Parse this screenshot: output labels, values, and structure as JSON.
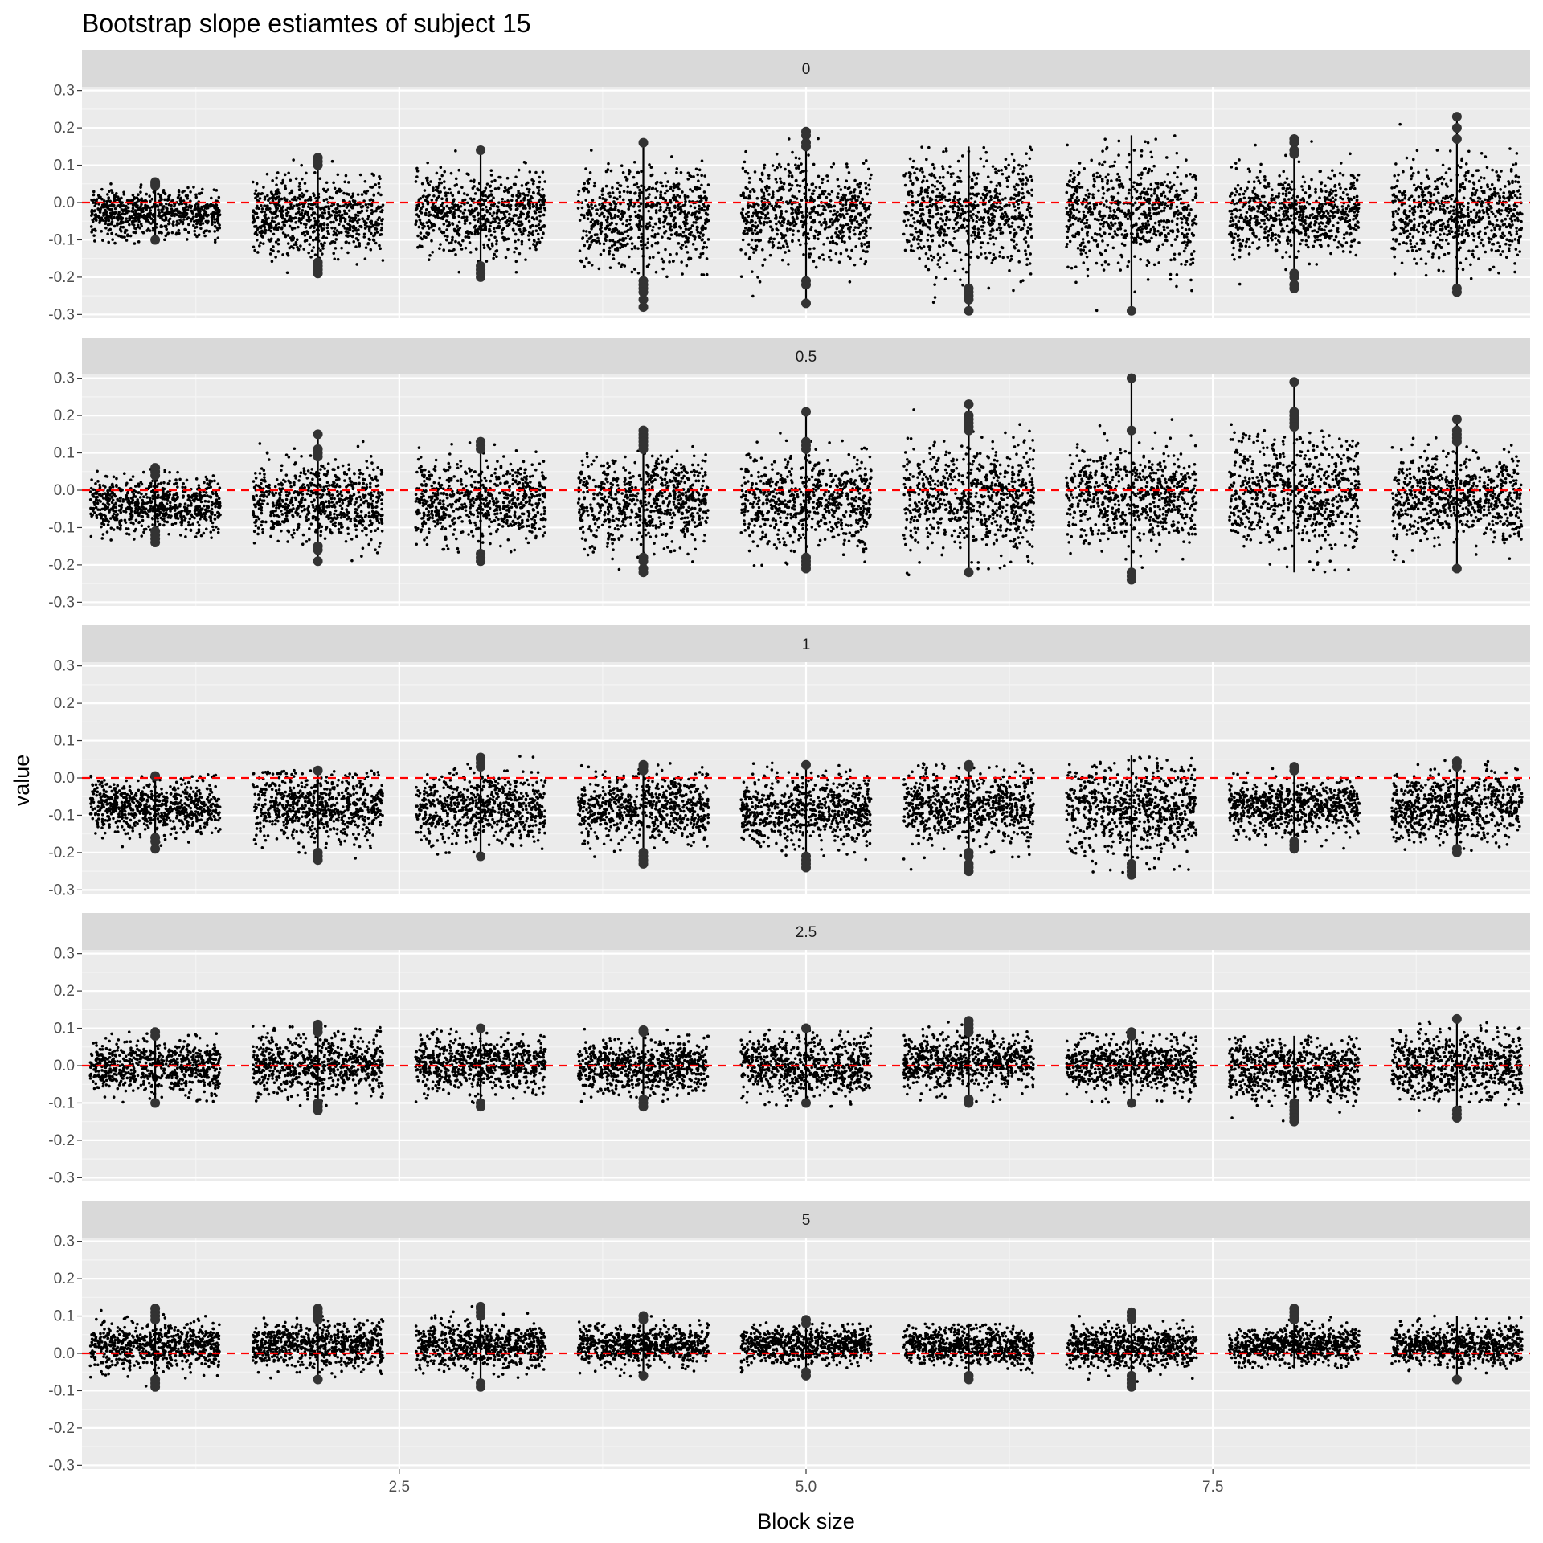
{
  "chart_data": {
    "type": "scatter",
    "title": "Bootstrap slope estiamtes of subject 15",
    "xlabel": "Block size",
    "ylabel": "value",
    "x_ticks": [
      "2.5",
      "5.0",
      "7.5"
    ],
    "x_tick_values": [
      2.5,
      5.0,
      7.5
    ],
    "xlim": [
      0.55,
      9.45
    ],
    "y_ticks": [
      "-0.3",
      "-0.2",
      "-0.1",
      "0.0",
      "0.1",
      "0.2",
      "0.3"
    ],
    "y_tick_values": [
      -0.3,
      -0.2,
      -0.1,
      0.0,
      0.1,
      0.2,
      0.3
    ],
    "ylim": [
      -0.31,
      0.31
    ],
    "reference_line": {
      "y": 0.0,
      "color": "#ff0000",
      "style": "dashed"
    },
    "categories": [
      1,
      2,
      3,
      4,
      5,
      6,
      7,
      8,
      9
    ],
    "grid": true,
    "background": "#ebebeb",
    "strip_background": "#d9d9d9",
    "point_color": "#000000",
    "outlier_color": "#333333",
    "facets": [
      {
        "label": "0",
        "groups": [
          {
            "x": 1,
            "center": -0.03,
            "spread": 0.03,
            "min": -0.11,
            "max": 0.05,
            "outliers": [
              0.055,
              0.05,
              0.045,
              -0.1
            ]
          },
          {
            "x": 2,
            "center": -0.04,
            "spread": 0.05,
            "min": -0.19,
            "max": 0.12,
            "outliers": [
              0.12,
              0.11,
              0.1,
              -0.16,
              -0.17,
              -0.18,
              -0.19
            ]
          },
          {
            "x": 3,
            "center": -0.03,
            "spread": 0.055,
            "min": -0.2,
            "max": 0.14,
            "outliers": [
              0.14,
              -0.17,
              -0.18,
              -0.19,
              -0.2
            ]
          },
          {
            "x": 4,
            "center": -0.04,
            "spread": 0.065,
            "min": -0.28,
            "max": 0.16,
            "outliers": [
              0.16,
              -0.21,
              -0.22,
              -0.23,
              -0.24,
              -0.26,
              -0.28
            ]
          },
          {
            "x": 5,
            "center": -0.03,
            "spread": 0.065,
            "min": -0.27,
            "max": 0.19,
            "outliers": [
              0.19,
              0.18,
              0.16,
              0.15,
              -0.21,
              -0.22,
              -0.27
            ]
          },
          {
            "x": 6,
            "center": -0.03,
            "spread": 0.075,
            "min": -0.29,
            "max": 0.15,
            "outliers": [
              -0.23,
              -0.24,
              -0.25,
              -0.26,
              -0.29
            ]
          },
          {
            "x": 7,
            "center": -0.03,
            "spread": 0.075,
            "min": -0.29,
            "max": 0.18,
            "outliers": [
              -0.29
            ]
          },
          {
            "x": 8,
            "center": -0.03,
            "spread": 0.055,
            "min": -0.23,
            "max": 0.17,
            "outliers": [
              0.17,
              0.16,
              0.14,
              0.13,
              -0.19,
              -0.2,
              -0.22,
              -0.23
            ]
          },
          {
            "x": 9,
            "center": -0.03,
            "spread": 0.065,
            "min": -0.24,
            "max": 0.23,
            "outliers": [
              0.23,
              0.2,
              0.17,
              -0.23,
              -0.24
            ]
          }
        ]
      },
      {
        "label": "0.5",
        "groups": [
          {
            "x": 1,
            "center": -0.04,
            "spread": 0.035,
            "min": -0.14,
            "max": 0.06,
            "outliers": [
              0.06,
              0.05,
              0.04,
              -0.11,
              -0.12,
              -0.13,
              -0.14
            ]
          },
          {
            "x": 2,
            "center": -0.03,
            "spread": 0.055,
            "min": -0.19,
            "max": 0.15,
            "outliers": [
              0.15,
              0.11,
              0.1,
              0.09,
              -0.15,
              -0.16,
              -0.19
            ]
          },
          {
            "x": 3,
            "center": -0.03,
            "spread": 0.055,
            "min": -0.19,
            "max": 0.13,
            "outliers": [
              0.13,
              0.12,
              0.11,
              -0.17,
              -0.18,
              -0.19
            ]
          },
          {
            "x": 4,
            "center": -0.03,
            "spread": 0.06,
            "min": -0.22,
            "max": 0.16,
            "outliers": [
              0.16,
              0.15,
              0.14,
              0.13,
              0.12,
              0.11,
              -0.18,
              -0.19,
              -0.21,
              -0.22
            ]
          },
          {
            "x": 5,
            "center": -0.03,
            "spread": 0.06,
            "min": -0.21,
            "max": 0.21,
            "outliers": [
              0.21,
              0.13,
              0.12,
              0.11,
              -0.18,
              -0.19,
              -0.2,
              -0.21
            ]
          },
          {
            "x": 6,
            "center": -0.02,
            "spread": 0.07,
            "min": -0.23,
            "max": 0.23,
            "outliers": [
              0.23,
              0.2,
              0.19,
              0.18,
              0.17,
              0.16,
              -0.22
            ]
          },
          {
            "x": 7,
            "center": -0.02,
            "spread": 0.065,
            "min": -0.24,
            "max": 0.3,
            "outliers": [
              0.3,
              0.16,
              -0.22,
              -0.23,
              -0.24
            ]
          },
          {
            "x": 8,
            "center": -0.01,
            "spread": 0.075,
            "min": -0.22,
            "max": 0.29,
            "outliers": [
              0.29,
              0.21,
              0.2,
              0.19,
              0.18,
              0.17
            ]
          },
          {
            "x": 9,
            "center": -0.02,
            "spread": 0.06,
            "min": -0.21,
            "max": 0.19,
            "outliers": [
              0.19,
              0.16,
              0.15,
              0.14,
              0.13,
              -0.21
            ]
          }
        ]
      },
      {
        "label": "1",
        "groups": [
          {
            "x": 1,
            "center": -0.08,
            "spread": 0.035,
            "min": -0.19,
            "max": 0.01,
            "outliers": [
              0.005,
              -0.16,
              -0.17,
              -0.19
            ]
          },
          {
            "x": 2,
            "center": -0.08,
            "spread": 0.045,
            "min": -0.22,
            "max": 0.02,
            "outliers": [
              0.02,
              -0.2,
              -0.21,
              -0.22
            ]
          },
          {
            "x": 3,
            "center": -0.08,
            "spread": 0.045,
            "min": -0.21,
            "max": 0.06,
            "outliers": [
              0.055,
              0.05,
              0.04,
              0.03,
              -0.21
            ]
          },
          {
            "x": 4,
            "center": -0.08,
            "spread": 0.045,
            "min": -0.23,
            "max": 0.04,
            "outliers": [
              0.035,
              0.03,
              0.02,
              -0.2,
              -0.21,
              -0.22,
              -0.23
            ]
          },
          {
            "x": 5,
            "center": -0.09,
            "spread": 0.045,
            "min": -0.24,
            "max": 0.04,
            "outliers": [
              0.035,
              -0.21,
              -0.22,
              -0.23,
              -0.24
            ]
          },
          {
            "x": 6,
            "center": -0.08,
            "spread": 0.045,
            "min": -0.25,
            "max": 0.04,
            "outliers": [
              0.035,
              0.03,
              -0.2,
              -0.21,
              -0.23,
              -0.24,
              -0.25
            ]
          },
          {
            "x": 7,
            "center": -0.09,
            "spread": 0.06,
            "min": -0.26,
            "max": 0.06,
            "outliers": [
              -0.23,
              -0.24,
              -0.25,
              -0.26
            ]
          },
          {
            "x": 8,
            "center": -0.08,
            "spread": 0.035,
            "min": -0.19,
            "max": 0.03,
            "outliers": [
              0.03,
              0.02,
              -0.17,
              -0.18,
              -0.19
            ]
          },
          {
            "x": 9,
            "center": -0.08,
            "spread": 0.045,
            "min": -0.2,
            "max": 0.05,
            "outliers": [
              0.045,
              0.04,
              0.03,
              -0.19,
              -0.2
            ]
          }
        ]
      },
      {
        "label": "2.5",
        "groups": [
          {
            "x": 1,
            "center": 0.0,
            "spread": 0.035,
            "min": -0.1,
            "max": 0.09,
            "outliers": [
              0.09,
              0.08,
              -0.1
            ]
          },
          {
            "x": 2,
            "center": 0.0,
            "spread": 0.04,
            "min": -0.12,
            "max": 0.11,
            "outliers": [
              0.11,
              0.1,
              0.09,
              -0.1,
              -0.11,
              -0.12
            ]
          },
          {
            "x": 3,
            "center": 0.0,
            "spread": 0.035,
            "min": -0.11,
            "max": 0.1,
            "outliers": [
              0.1,
              -0.1,
              -0.11
            ]
          },
          {
            "x": 4,
            "center": 0.0,
            "spread": 0.035,
            "min": -0.11,
            "max": 0.1,
            "outliers": [
              0.095,
              0.09,
              -0.09,
              -0.1,
              -0.11
            ]
          },
          {
            "x": 5,
            "center": 0.0,
            "spread": 0.04,
            "min": -0.11,
            "max": 0.1,
            "outliers": [
              0.1,
              -0.1
            ]
          },
          {
            "x": 6,
            "center": 0.01,
            "spread": 0.035,
            "min": -0.1,
            "max": 0.12,
            "outliers": [
              0.12,
              0.11,
              0.1,
              0.09,
              -0.09,
              -0.1
            ]
          },
          {
            "x": 7,
            "center": 0.0,
            "spread": 0.035,
            "min": -0.1,
            "max": 0.09,
            "outliers": [
              0.09,
              0.08,
              -0.1
            ]
          },
          {
            "x": 8,
            "center": -0.01,
            "spread": 0.04,
            "min": -0.15,
            "max": 0.08,
            "outliers": [
              -0.1,
              -0.11,
              -0.12,
              -0.13,
              -0.14,
              -0.15
            ]
          },
          {
            "x": 9,
            "center": 0.0,
            "spread": 0.045,
            "min": -0.14,
            "max": 0.12,
            "outliers": [
              0.125,
              -0.12,
              -0.13,
              -0.14
            ]
          }
        ]
      },
      {
        "label": "5",
        "groups": [
          {
            "x": 1,
            "center": 0.02,
            "spread": 0.03,
            "min": -0.09,
            "max": 0.12,
            "outliers": [
              0.12,
              0.11,
              0.1,
              0.09,
              -0.07,
              -0.08,
              -0.09
            ]
          },
          {
            "x": 2,
            "center": 0.02,
            "spread": 0.03,
            "min": -0.07,
            "max": 0.12,
            "outliers": [
              0.12,
              0.11,
              0.1,
              0.09,
              -0.07
            ]
          },
          {
            "x": 3,
            "center": 0.02,
            "spread": 0.03,
            "min": -0.09,
            "max": 0.13,
            "outliers": [
              0.125,
              0.12,
              0.11,
              0.1,
              -0.08,
              -0.09
            ]
          },
          {
            "x": 4,
            "center": 0.02,
            "spread": 0.025,
            "min": -0.07,
            "max": 0.1,
            "outliers": [
              0.1,
              0.09,
              -0.06
            ]
          },
          {
            "x": 5,
            "center": 0.02,
            "spread": 0.025,
            "min": -0.06,
            "max": 0.09,
            "outliers": [
              0.09,
              0.08,
              -0.05,
              -0.06
            ]
          },
          {
            "x": 6,
            "center": 0.02,
            "spread": 0.025,
            "min": -0.07,
            "max": 0.08,
            "outliers": [
              -0.06,
              -0.07
            ]
          },
          {
            "x": 7,
            "center": 0.02,
            "spread": 0.03,
            "min": -0.09,
            "max": 0.11,
            "outliers": [
              0.11,
              0.1,
              0.09,
              -0.06,
              -0.07,
              -0.08,
              -0.09
            ]
          },
          {
            "x": 8,
            "center": 0.02,
            "spread": 0.025,
            "min": -0.04,
            "max": 0.12,
            "outliers": [
              0.12,
              0.11,
              0.1,
              0.09
            ]
          },
          {
            "x": 9,
            "center": 0.02,
            "spread": 0.025,
            "min": -0.07,
            "max": 0.1,
            "outliers": [
              -0.07
            ]
          }
        ]
      }
    ]
  }
}
